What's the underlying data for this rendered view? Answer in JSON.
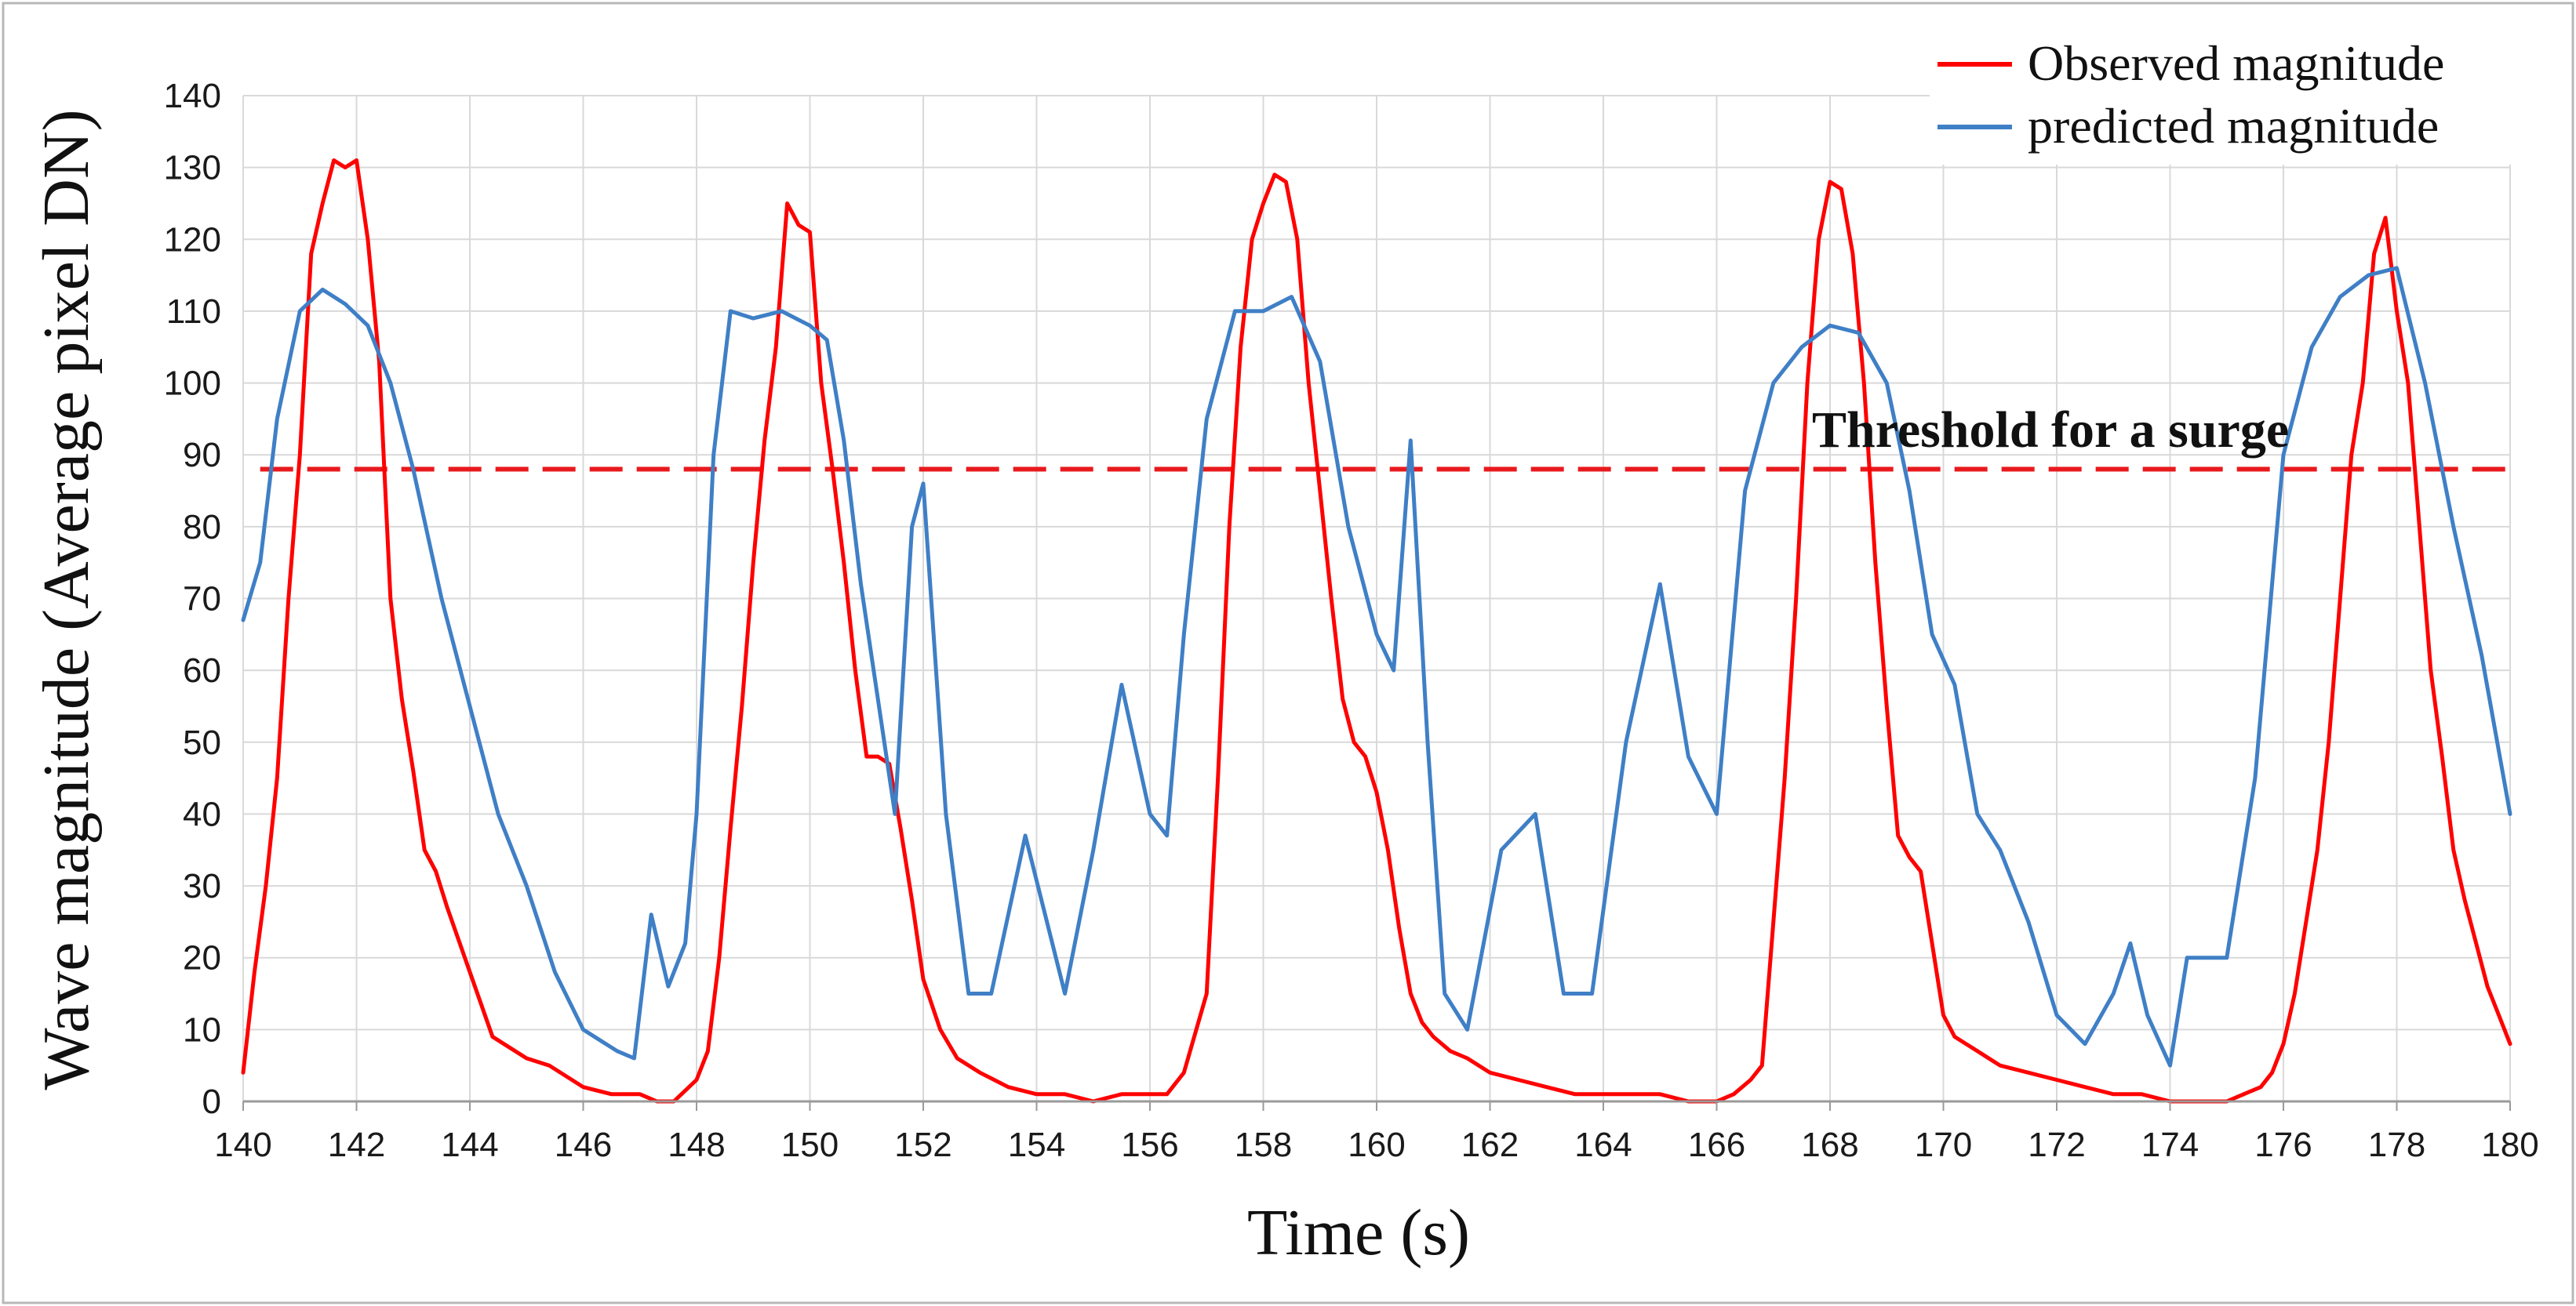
{
  "chart_data": {
    "type": "line",
    "title": "",
    "xlabel": "Time (s)",
    "ylabel": "Wave magnitude (Average pixel DN)",
    "xlim": [
      140,
      180
    ],
    "ylim": [
      0,
      140
    ],
    "x_ticks": [
      "140",
      "142",
      "144",
      "146",
      "148",
      "150",
      "152",
      "154",
      "156",
      "158",
      "160",
      "162",
      "164",
      "166",
      "168",
      "170",
      "172",
      "174",
      "176",
      "178",
      "180"
    ],
    "y_ticks": [
      "0",
      "10",
      "20",
      "30",
      "40",
      "50",
      "60",
      "70",
      "80",
      "90",
      "100",
      "110",
      "120",
      "130",
      "140"
    ],
    "grid": "vertical and horizontal",
    "legend_position": "top-right",
    "annotation": {
      "text": "Threshold for a surge",
      "y": 88
    },
    "threshold": {
      "y": 88,
      "color": "#e8191d",
      "style": "dashed"
    },
    "series": [
      {
        "name": "Observed magnitude",
        "color": "#ff0000",
        "x": [
          140,
          140.2,
          140.4,
          140.6,
          140.8,
          141,
          141.2,
          141.4,
          141.6,
          141.8,
          142,
          142.2,
          142.4,
          142.6,
          142.8,
          143,
          143.2,
          143.4,
          143.6,
          144,
          144.4,
          145,
          145.4,
          146,
          146.5,
          147,
          147.3,
          147.6,
          148,
          148.2,
          148.4,
          148.6,
          148.8,
          149,
          149.2,
          149.4,
          149.6,
          149.8,
          150,
          150.2,
          150.4,
          150.6,
          150.8,
          151,
          151.2,
          151.4,
          151.6,
          151.8,
          152,
          152.3,
          152.6,
          153,
          153.5,
          154,
          154.5,
          155,
          155.5,
          156,
          156.3,
          156.6,
          157,
          157.2,
          157.4,
          157.6,
          157.8,
          158,
          158.2,
          158.4,
          158.6,
          158.8,
          159,
          159.2,
          159.4,
          159.6,
          159.8,
          160,
          160.2,
          160.4,
          160.6,
          160.8,
          161,
          161.3,
          161.6,
          162,
          162.5,
          163,
          163.5,
          164,
          164.5,
          165,
          165.5,
          166,
          166.3,
          166.6,
          166.8,
          167,
          167.2,
          167.4,
          167.6,
          167.8,
          168,
          168.2,
          168.4,
          168.6,
          168.8,
          169,
          169.2,
          169.4,
          169.6,
          169.8,
          170,
          170.2,
          170.4,
          170.6,
          171,
          171.5,
          172,
          172.5,
          173,
          173.5,
          174,
          174.5,
          175,
          175.3,
          175.6,
          175.8,
          176,
          176.2,
          176.4,
          176.6,
          176.8,
          177,
          177.2,
          177.4,
          177.6,
          177.8,
          178,
          178.2,
          178.4,
          178.6,
          178.8,
          179,
          179.2,
          179.4,
          179.6,
          179.8,
          180
        ],
        "y": [
          4,
          18,
          30,
          45,
          70,
          90,
          118,
          125,
          131,
          130,
          131,
          120,
          103,
          70,
          56,
          46,
          35,
          32,
          27,
          18,
          9,
          6,
          5,
          2,
          1,
          1,
          0,
          0,
          3,
          7,
          20,
          38,
          55,
          75,
          92,
          105,
          125,
          122,
          121,
          100,
          88,
          75,
          60,
          48,
          48,
          47,
          38,
          28,
          17,
          10,
          6,
          4,
          2,
          1,
          1,
          0,
          1,
          1,
          1,
          4,
          15,
          45,
          80,
          105,
          120,
          125,
          129,
          128,
          120,
          100,
          85,
          70,
          56,
          50,
          48,
          43,
          35,
          24,
          15,
          11,
          9,
          7,
          6,
          4,
          3,
          2,
          1,
          1,
          1,
          1,
          0,
          0,
          1,
          3,
          5,
          25,
          45,
          70,
          100,
          120,
          128,
          127,
          118,
          100,
          75,
          55,
          37,
          34,
          32,
          22,
          12,
          9,
          8,
          7,
          5,
          4,
          3,
          2,
          1,
          1,
          0,
          0,
          0,
          1,
          2,
          4,
          8,
          15,
          25,
          35,
          50,
          70,
          90,
          100,
          118,
          123,
          110,
          100,
          80,
          60,
          48,
          35,
          28,
          22,
          16,
          12,
          8
        ]
      },
      {
        "name": "predicted magnitude",
        "color": "#3f7fc6",
        "x": [
          140,
          140.3,
          140.6,
          141,
          141.4,
          141.8,
          142.2,
          142.6,
          143,
          143.5,
          144,
          144.5,
          145,
          145.5,
          146,
          146.6,
          146.9,
          147.2,
          147.5,
          147.8,
          148,
          148.3,
          148.6,
          149,
          149.5,
          150,
          150.3,
          150.6,
          150.9,
          151.2,
          151.5,
          151.8,
          152,
          152.4,
          152.8,
          153.2,
          153.8,
          154.5,
          155,
          155.5,
          156,
          156.3,
          156.6,
          157,
          157.5,
          158,
          158.5,
          159,
          159.5,
          160,
          160.3,
          160.6,
          160.9,
          161.2,
          161.6,
          162.2,
          162.8,
          163.3,
          163.8,
          164.4,
          165,
          165.5,
          166,
          166.5,
          167,
          167.5,
          168,
          168.5,
          169,
          169.4,
          169.8,
          170.2,
          170.6,
          171,
          171.5,
          172,
          172.5,
          173,
          173.3,
          173.6,
          174,
          174.3,
          174.6,
          175,
          175.5,
          176,
          176.5,
          177,
          177.5,
          178,
          178.5,
          179,
          179.5,
          180
        ],
        "y": [
          67,
          75,
          95,
          110,
          113,
          111,
          108,
          100,
          88,
          70,
          55,
          40,
          30,
          18,
          10,
          7,
          6,
          26,
          16,
          22,
          40,
          90,
          110,
          109,
          110,
          108,
          106,
          92,
          72,
          56,
          40,
          80,
          86,
          40,
          15,
          15,
          37,
          15,
          35,
          58,
          40,
          37,
          65,
          95,
          110,
          110,
          112,
          103,
          80,
          65,
          60,
          92,
          50,
          15,
          10,
          35,
          40,
          15,
          15,
          50,
          72,
          48,
          40,
          85,
          100,
          105,
          108,
          107,
          100,
          85,
          65,
          58,
          40,
          35,
          25,
          12,
          8,
          15,
          22,
          12,
          5,
          20,
          20,
          20,
          45,
          90,
          105,
          112,
          115,
          116,
          100,
          80,
          62,
          40
        ]
      }
    ]
  }
}
